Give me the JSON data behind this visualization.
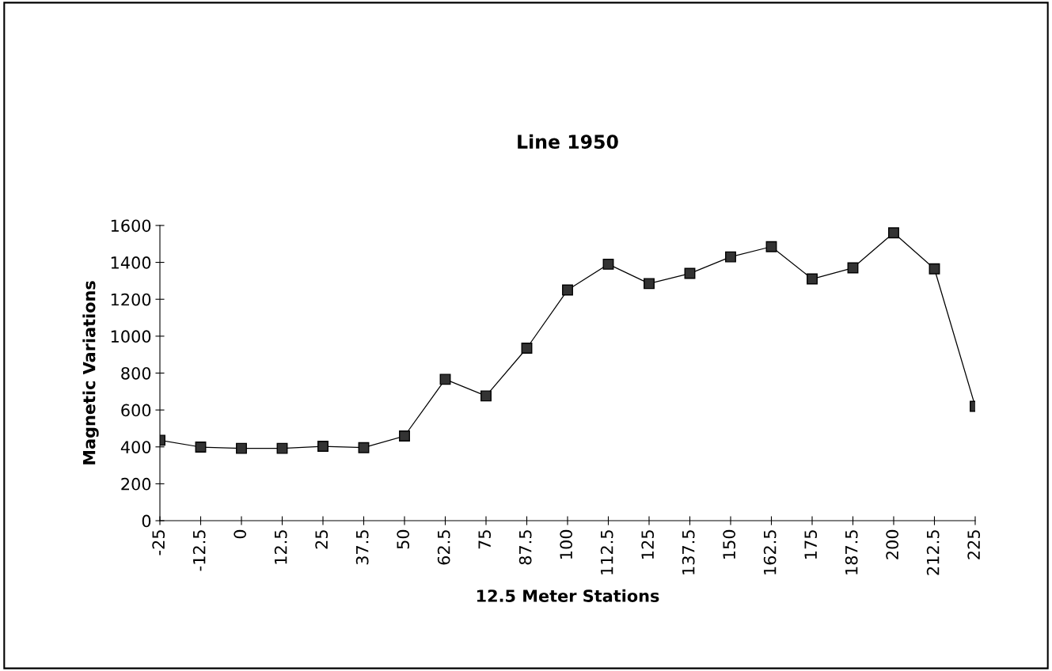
{
  "chart_data": {
    "type": "line",
    "title": "Line 1950",
    "xlabel": "12.5 Meter Stations",
    "ylabel": "Magnetic Variations",
    "x": [
      -25,
      -12.5,
      0,
      12.5,
      25,
      37.5,
      50,
      62.5,
      75,
      87.5,
      100,
      112.5,
      125,
      137.5,
      150,
      162.5,
      175,
      187.5,
      200,
      212.5,
      225
    ],
    "series": [
      {
        "color": "#333333",
        "values": [
          436,
          399,
          392,
          392,
          403,
          396,
          459,
          766,
          676,
          935,
          1250,
          1390,
          1285,
          1340,
          1430,
          1485,
          1310,
          1370,
          1560,
          1365,
          620
        ]
      }
    ],
    "xlim": [
      -25,
      225
    ],
    "xticks": [
      -25,
      -12.5,
      0,
      12.5,
      25,
      37.5,
      50,
      62.5,
      75,
      87.5,
      100,
      112.5,
      125,
      137.5,
      150,
      162.5,
      175,
      187.5,
      200,
      212.5,
      225
    ],
    "ylim": [
      0,
      1600
    ],
    "yticks": [
      0,
      200,
      400,
      600,
      800,
      1000,
      1200,
      1400,
      1600
    ],
    "marker": "square",
    "line_style": "solid",
    "grid": false,
    "legend": false
  }
}
